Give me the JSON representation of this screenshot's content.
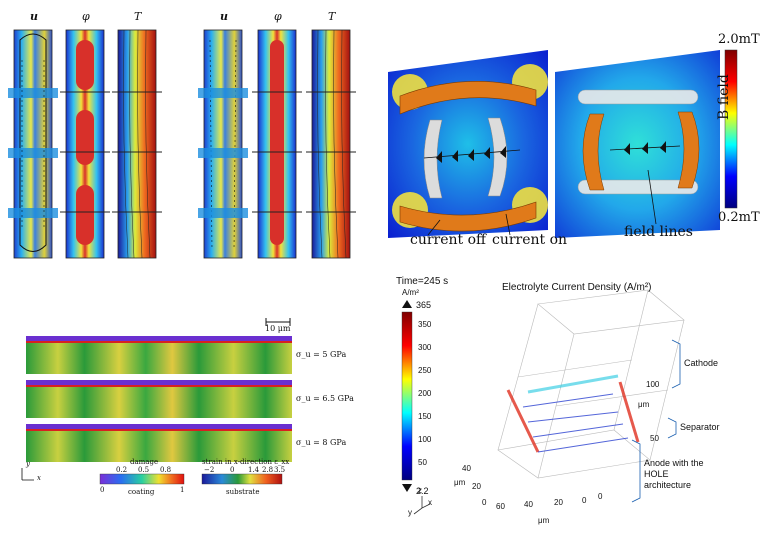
{
  "panel_tl": {
    "labels": [
      "u",
      "φ",
      "T",
      "u",
      "φ",
      "T"
    ]
  },
  "panel_tr": {
    "colorbar": {
      "max": "2.0mT",
      "min": "0.2mT",
      "title": "B field"
    },
    "annotations": {
      "current_off": "current off",
      "current_on": "current on",
      "field_lines": "field lines"
    }
  },
  "panel_bl": {
    "scale": "10 μm",
    "rows": [
      "σ_u = 5 GPa",
      "σ_u = 6.5 GPa",
      "σ_u = 8 GPa"
    ],
    "damage_title": "damage",
    "damage_ticks": [
      "0.2",
      "0.5",
      "0.8"
    ],
    "damage_ends": [
      "0",
      "1"
    ],
    "coating_label": "coating",
    "strain_title": "strain in x-direction ε_xx",
    "strain_ticks": [
      "−2",
      "0",
      "1.4",
      "2.8",
      "3.5"
    ],
    "substrate_label": "substrate",
    "axes": {
      "y": "y",
      "x": "x"
    }
  },
  "panel_br": {
    "time": "Time=245 s",
    "title": "Electrolyte Current Density (A/m²)",
    "unit": "A/m²",
    "cb_max": "365",
    "cb_min": "2.2",
    "cb_ticks": [
      "350",
      "300",
      "250",
      "200",
      "150",
      "100",
      "50"
    ],
    "right_axis_ticks": [
      "100",
      "50",
      "0"
    ],
    "right_axis_unit": "μm",
    "left_axis_ticks": [
      "40",
      "20",
      "0"
    ],
    "left_axis_unit": "μm",
    "bottom_ticks": [
      "60",
      "40",
      "20",
      "0"
    ],
    "bottom_unit": "μm",
    "cathode": "Cathode",
    "separator": "Separator",
    "anode": "Anode with the HOLE architecture",
    "triad": {
      "x": "x",
      "y": "y",
      "z": "z"
    }
  },
  "colors": {
    "jet_dark_blue": "#00007f",
    "jet_blue": "#0000ff",
    "jet_cyan": "#00ffff",
    "jet_yellow": "#ffff00",
    "jet_red": "#ff0000",
    "jet_dark_red": "#7f0000",
    "coil_orange": "#e07a1a"
  }
}
